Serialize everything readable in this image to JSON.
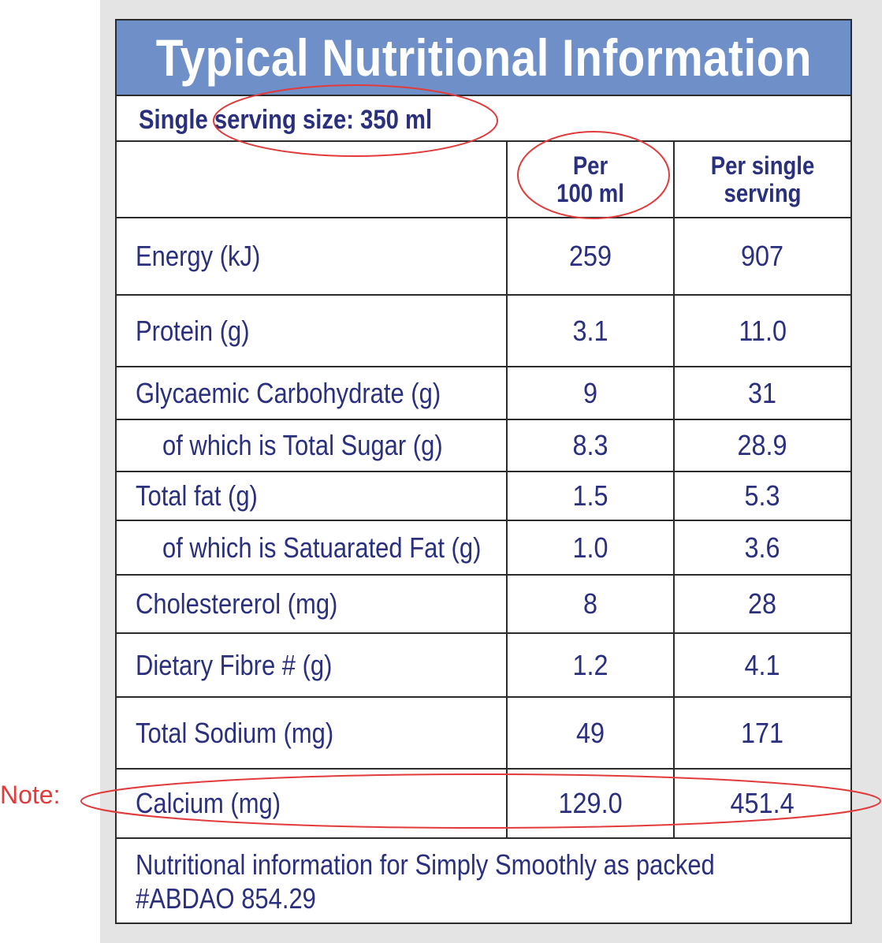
{
  "title": "Typical Nutritional Information",
  "serving_size": "Single serving size: 350 ml",
  "columns": {
    "per_100": "Per\n100 ml",
    "per_serving": "Per single\nserving"
  },
  "rows": [
    {
      "name": "Energy (kJ)",
      "per_100": "259",
      "per_serving": "907",
      "indent": false
    },
    {
      "name": "Protein (g)",
      "per_100": "3.1",
      "per_serving": "11.0",
      "indent": false
    },
    {
      "name": "Glycaemic Carbohydrate (g)",
      "per_100": "9",
      "per_serving": "31",
      "indent": false
    },
    {
      "name": "of which is Total Sugar (g)",
      "per_100": "8.3",
      "per_serving": "28.9",
      "indent": true
    },
    {
      "name": "Total fat (g)",
      "per_100": "1.5",
      "per_serving": "5.3",
      "indent": false
    },
    {
      "name": "of which is Satuarated Fat (g)",
      "per_100": "1.0",
      "per_serving": "3.6",
      "indent": true
    },
    {
      "name": "Cholestererol (mg)",
      "per_100": "8",
      "per_serving": "28",
      "indent": false
    },
    {
      "name": "Dietary Fibre # (g)",
      "per_100": "1.2",
      "per_serving": "4.1",
      "indent": false
    },
    {
      "name": "Total Sodium (mg)",
      "per_100": "49",
      "per_serving": "171",
      "indent": false
    },
    {
      "name": "Calcium (mg)",
      "per_100": "129.0",
      "per_serving": "451.4",
      "indent": false
    }
  ],
  "footnote": {
    "line1": "Nutritional information for Simply Smoothly as packed",
    "line2": "#ABDAO 854.29"
  },
  "annotation_note": "Note:",
  "colors": {
    "title_bg": "#6f8fc8",
    "text": "#2a2f7e",
    "annotation": "#e23b3b"
  }
}
